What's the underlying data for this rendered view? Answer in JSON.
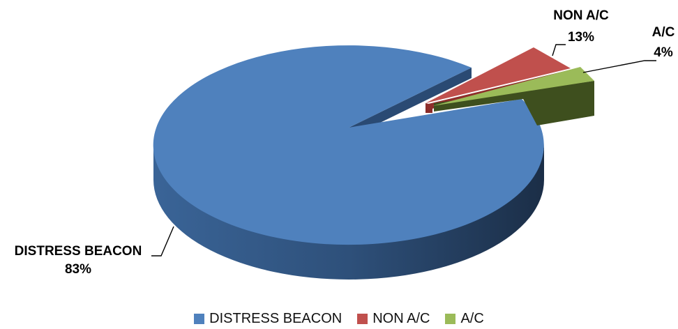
{
  "chart_data": {
    "type": "pie",
    "style": "3d-exploded",
    "slices": [
      {
        "label": "DISTRESS BEACON",
        "percent_label": "83%",
        "value": 83,
        "color": "#4F81BD",
        "dark": "#22385A",
        "mid": "#3C6496",
        "exploded": false
      },
      {
        "label": "NON A/C",
        "percent_label": "13%",
        "value": 13,
        "color": "#C0504D",
        "dark": "#6E1E1C",
        "mid": "#953735",
        "exploded": true
      },
      {
        "label": "A/C",
        "percent_label": "4%",
        "value": 4,
        "color": "#9BBB59",
        "dark": "#3E4F1E",
        "mid": "#5E7A2A",
        "exploded": true
      }
    ],
    "legend_position": "bottom",
    "data_labels": true
  }
}
